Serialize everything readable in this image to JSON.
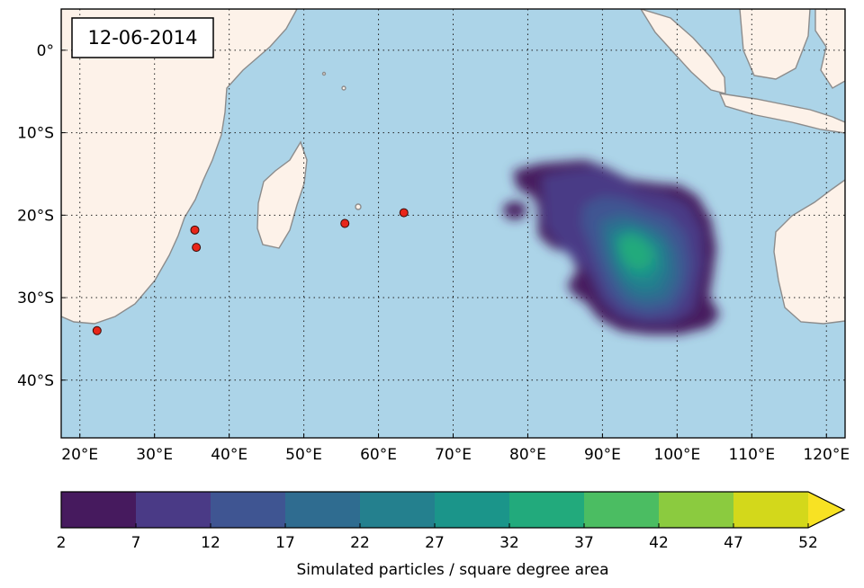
{
  "date_label": "12-06-2014",
  "map": {
    "lon_range": [
      17.5,
      122.5
    ],
    "lat_range": [
      -47.0,
      5.0
    ],
    "grid": "dotted",
    "x_ticks": [
      {
        "value": 20,
        "label": "20°E"
      },
      {
        "value": 30,
        "label": "30°E"
      },
      {
        "value": 40,
        "label": "40°E"
      },
      {
        "value": 50,
        "label": "50°E"
      },
      {
        "value": 60,
        "label": "60°E"
      },
      {
        "value": 70,
        "label": "70°E"
      },
      {
        "value": 80,
        "label": "80°E"
      },
      {
        "value": 90,
        "label": "90°E"
      },
      {
        "value": 100,
        "label": "100°E"
      },
      {
        "value": 110,
        "label": "110°E"
      },
      {
        "value": 120,
        "label": "120°E"
      }
    ],
    "y_ticks": [
      {
        "value": 0,
        "label": "0°"
      },
      {
        "value": -10,
        "label": "10°S"
      },
      {
        "value": -20,
        "label": "20°S"
      },
      {
        "value": -30,
        "label": "30°S"
      },
      {
        "value": -40,
        "label": "40°S"
      }
    ],
    "colors": {
      "ocean": "#acd4e8",
      "land": "#fdf2e9",
      "coast": "#8c8c8c",
      "marker": "#e8261a"
    },
    "markers": [
      {
        "lon": 22.3,
        "lat": -34.0
      },
      {
        "lon": 35.4,
        "lat": -21.8
      },
      {
        "lon": 35.6,
        "lat": -23.9
      },
      {
        "lon": 55.5,
        "lat": -21.0
      },
      {
        "lon": 63.4,
        "lat": -19.7
      }
    ]
  },
  "colorbar": {
    "label": "Simulated particles / square degree area",
    "ticks": [
      "2",
      "7",
      "12",
      "17",
      "22",
      "27",
      "32",
      "37",
      "42",
      "47",
      "52"
    ],
    "colors": [
      "#461a5e",
      "#4a3a86",
      "#3f5592",
      "#2f6c90",
      "#24808e",
      "#1b958a",
      "#22aa7c",
      "#4bbd62",
      "#8bcb3f",
      "#d3d81b"
    ],
    "extend_color": "#f8e223"
  }
}
